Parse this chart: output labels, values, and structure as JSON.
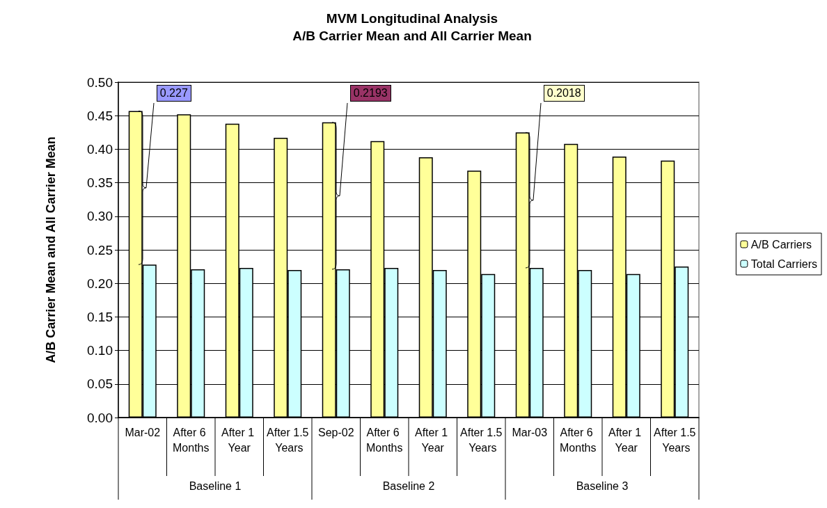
{
  "chart_data": {
    "type": "bar",
    "title": "MVM Longitudinal Analysis",
    "subtitle": "A/B Carrier Mean and All Carrier Mean",
    "ylabel": "A/B Carrier Mean and All Carrier Mean",
    "categories": [
      "Mar-02",
      "After 6 Months",
      "After 1 Year",
      "After 1.5 Years",
      "Sep-02",
      "After 6 Months",
      "After 1 Year",
      "After 1.5 Years",
      "Mar-03",
      "After 6 Months",
      "After 1 Year",
      "After 1.5 Years"
    ],
    "series": [
      {
        "name": "A/B Carriers",
        "color": "#ffff99",
        "values": [
          0.457,
          0.452,
          0.438,
          0.417,
          0.44,
          0.412,
          0.388,
          0.368,
          0.425,
          0.408,
          0.389,
          0.383
        ]
      },
      {
        "name": "Total Carriers",
        "color": "#ccffff",
        "values": [
          0.228,
          0.221,
          0.223,
          0.22,
          0.221,
          0.223,
          0.22,
          0.214,
          0.223,
          0.22,
          0.214,
          0.225
        ]
      }
    ],
    "ylim": [
      0,
      0.5
    ],
    "yticks": [
      {
        "value": 0,
        "label": "0.00"
      },
      0.05,
      {
        "value": 0.1,
        "label": "0.10"
      },
      0.15,
      {
        "value": 0.2,
        "label": "0.20"
      },
      0.25,
      {
        "value": 0.3,
        "label": "0.30"
      },
      0.35,
      {
        "value": 0.4,
        "label": "0.40"
      },
      0.45,
      {
        "value": 0.5,
        "label": "0.50"
      }
    ],
    "grid": "y",
    "legend": "right",
    "annotations": [
      "0.227",
      "0.2193",
      "0.2018",
      "Baseline 1",
      "Baseline 2",
      "Baseline 3"
    ]
  }
}
